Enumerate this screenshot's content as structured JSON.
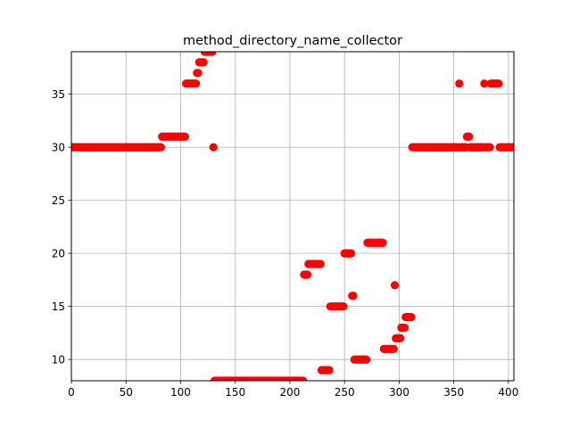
{
  "chart_data": {
    "type": "scatter",
    "title": "method_directory_name_collector",
    "xlabel": "",
    "ylabel": "",
    "xlim": [
      0,
      405
    ],
    "ylim": [
      8,
      39
    ],
    "xticks": [
      0,
      50,
      100,
      150,
      200,
      250,
      300,
      350,
      400
    ],
    "yticks": [
      10,
      15,
      20,
      25,
      30,
      35
    ],
    "grid": true,
    "marker_color": "#ff0000",
    "series": [
      {
        "segments": [
          {
            "x_start": 0,
            "x_end": 82,
            "y": 30
          },
          {
            "x_start": 83,
            "x_end": 104,
            "y": 31
          },
          {
            "x_start": 105,
            "x_end": 114,
            "y": 36
          },
          {
            "x_start": 115,
            "x_end": 116,
            "y": 37
          },
          {
            "x_start": 117,
            "x_end": 121,
            "y": 38
          },
          {
            "x_start": 122,
            "x_end": 129,
            "y": 39
          },
          {
            "x_start": 130,
            "x_end": 130,
            "y": 30
          },
          {
            "x_start": 131,
            "x_end": 212,
            "y": 8
          },
          {
            "x_start": 213,
            "x_end": 216,
            "y": 18
          },
          {
            "x_start": 217,
            "x_end": 228,
            "y": 19
          },
          {
            "x_start": 229,
            "x_end": 236,
            "y": 9
          },
          {
            "x_start": 237,
            "x_end": 249,
            "y": 15
          },
          {
            "x_start": 250,
            "x_end": 256,
            "y": 20
          },
          {
            "x_start": 257,
            "x_end": 258,
            "y": 16
          },
          {
            "x_start": 259,
            "x_end": 270,
            "y": 10
          },
          {
            "x_start": 271,
            "x_end": 285,
            "y": 21
          },
          {
            "x_start": 286,
            "x_end": 295,
            "y": 11
          },
          {
            "x_start": 296,
            "x_end": 296,
            "y": 17
          },
          {
            "x_start": 297,
            "x_end": 301,
            "y": 12
          },
          {
            "x_start": 302,
            "x_end": 305,
            "y": 13
          },
          {
            "x_start": 306,
            "x_end": 311,
            "y": 14
          },
          {
            "x_start": 312,
            "x_end": 354,
            "y": 30
          },
          {
            "x_start": 355,
            "x_end": 355,
            "y": 36
          },
          {
            "x_start": 356,
            "x_end": 361,
            "y": 30
          },
          {
            "x_start": 362,
            "x_end": 364,
            "y": 31
          },
          {
            "x_start": 365,
            "x_end": 377,
            "y": 30
          },
          {
            "x_start": 378,
            "x_end": 378,
            "y": 36
          },
          {
            "x_start": 379,
            "x_end": 383,
            "y": 30
          },
          {
            "x_start": 384,
            "x_end": 391,
            "y": 36
          },
          {
            "x_start": 392,
            "x_end": 405,
            "y": 30
          }
        ]
      }
    ]
  }
}
